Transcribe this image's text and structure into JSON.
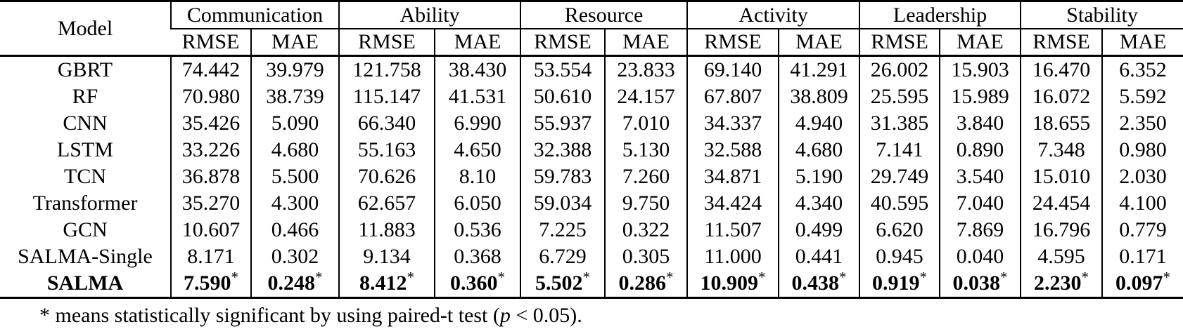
{
  "table": {
    "model_header": "Model",
    "metric_headers": [
      "RMSE",
      "MAE"
    ],
    "star_marker": "*",
    "groups": [
      {
        "label": "Communication"
      },
      {
        "label": "Ability"
      },
      {
        "label": "Resource"
      },
      {
        "label": "Activity"
      },
      {
        "label": "Leadership"
      },
      {
        "label": "Stability"
      }
    ],
    "rows": [
      {
        "model": "GBRT",
        "bold": false,
        "starred": false,
        "values": [
          "74.442",
          "39.979",
          "121.758",
          "38.430",
          "53.554",
          "23.833",
          "69.140",
          "41.291",
          "26.002",
          "15.903",
          "16.470",
          "6.352"
        ]
      },
      {
        "model": "RF",
        "bold": false,
        "starred": false,
        "values": [
          "70.980",
          "38.739",
          "115.147",
          "41.531",
          "50.610",
          "24.157",
          "67.807",
          "38.809",
          "25.595",
          "15.989",
          "16.072",
          "5.592"
        ]
      },
      {
        "model": "CNN",
        "bold": false,
        "starred": false,
        "values": [
          "35.426",
          "5.090",
          "66.340",
          "6.990",
          "55.937",
          "7.010",
          "34.337",
          "4.940",
          "31.385",
          "3.840",
          "18.655",
          "2.350"
        ]
      },
      {
        "model": "LSTM",
        "bold": false,
        "starred": false,
        "values": [
          "33.226",
          "4.680",
          "55.163",
          "4.650",
          "32.388",
          "5.130",
          "32.588",
          "4.680",
          "7.141",
          "0.890",
          "7.348",
          "0.980"
        ]
      },
      {
        "model": "TCN",
        "bold": false,
        "starred": false,
        "values": [
          "36.878",
          "5.500",
          "70.626",
          "8.10",
          "59.783",
          "7.260",
          "34.871",
          "5.190",
          "29.749",
          "3.540",
          "15.010",
          "2.030"
        ]
      },
      {
        "model": "Transformer",
        "bold": false,
        "starred": false,
        "values": [
          "35.270",
          "4.300",
          "62.657",
          "6.050",
          "59.034",
          "9.750",
          "34.424",
          "4.340",
          "40.595",
          "7.040",
          "24.454",
          "4.100"
        ]
      },
      {
        "model": "GCN",
        "bold": false,
        "starred": false,
        "values": [
          "10.607",
          "0.466",
          "11.883",
          "0.536",
          "7.225",
          "0.322",
          "11.507",
          "0.499",
          "6.620",
          "7.869",
          "16.796",
          "0.779"
        ]
      },
      {
        "model": "SALMA-Single",
        "bold": false,
        "starred": false,
        "values": [
          "8.171",
          "0.302",
          "9.134",
          "0.368",
          "6.729",
          "0.305",
          "11.000",
          "0.441",
          "0.945",
          "0.040",
          "4.595",
          "0.171"
        ]
      },
      {
        "model": "SALMA",
        "bold": true,
        "starred": true,
        "values": [
          "7.590",
          "0.248",
          "8.412",
          "0.360",
          "5.502",
          "0.286",
          "10.909",
          "0.438",
          "0.919",
          "0.038",
          "2.230",
          "0.097"
        ]
      }
    ],
    "footnote": {
      "marker": "*",
      "text": "means statistically significant by using paired-t test (",
      "p_variable": "p",
      "tail": "< 0.05)."
    }
  }
}
